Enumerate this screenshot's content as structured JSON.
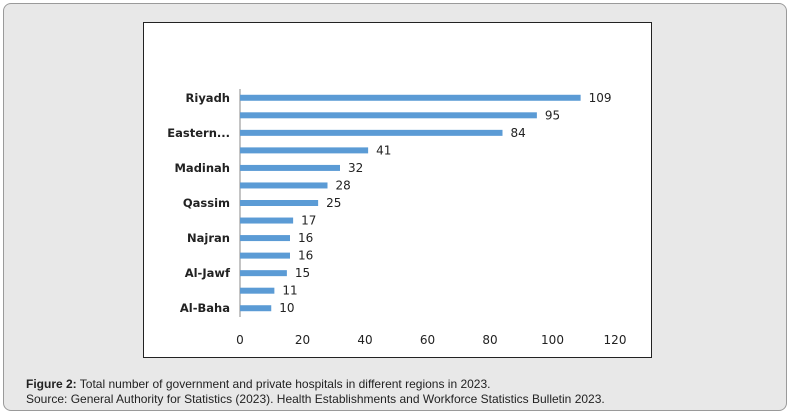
{
  "chart_data": {
    "type": "bar",
    "orientation": "horizontal",
    "categories": [
      "Riyadh",
      "",
      "Eastern...",
      "",
      "Madinah",
      "",
      "Qassim",
      "",
      "Najran",
      "",
      "Al-Jawf",
      "",
      "Al-Baha"
    ],
    "values": [
      109,
      95,
      84,
      41,
      32,
      28,
      25,
      17,
      16,
      16,
      15,
      11,
      10
    ],
    "xlim": [
      0,
      120
    ],
    "xticks": [
      0,
      20,
      40,
      60,
      80,
      100,
      120
    ],
    "grid": false,
    "bar_color": "#5b9bd5",
    "axis_color": "#888888",
    "data_labels": true
  },
  "figure": {
    "label": "Figure 2:",
    "title": "Total number of government and private hospitals in different regions in 2023.",
    "source": "Source: General Authority for Statistics (2023). Health Establishments and Workforce Statistics Bulletin 2023."
  }
}
